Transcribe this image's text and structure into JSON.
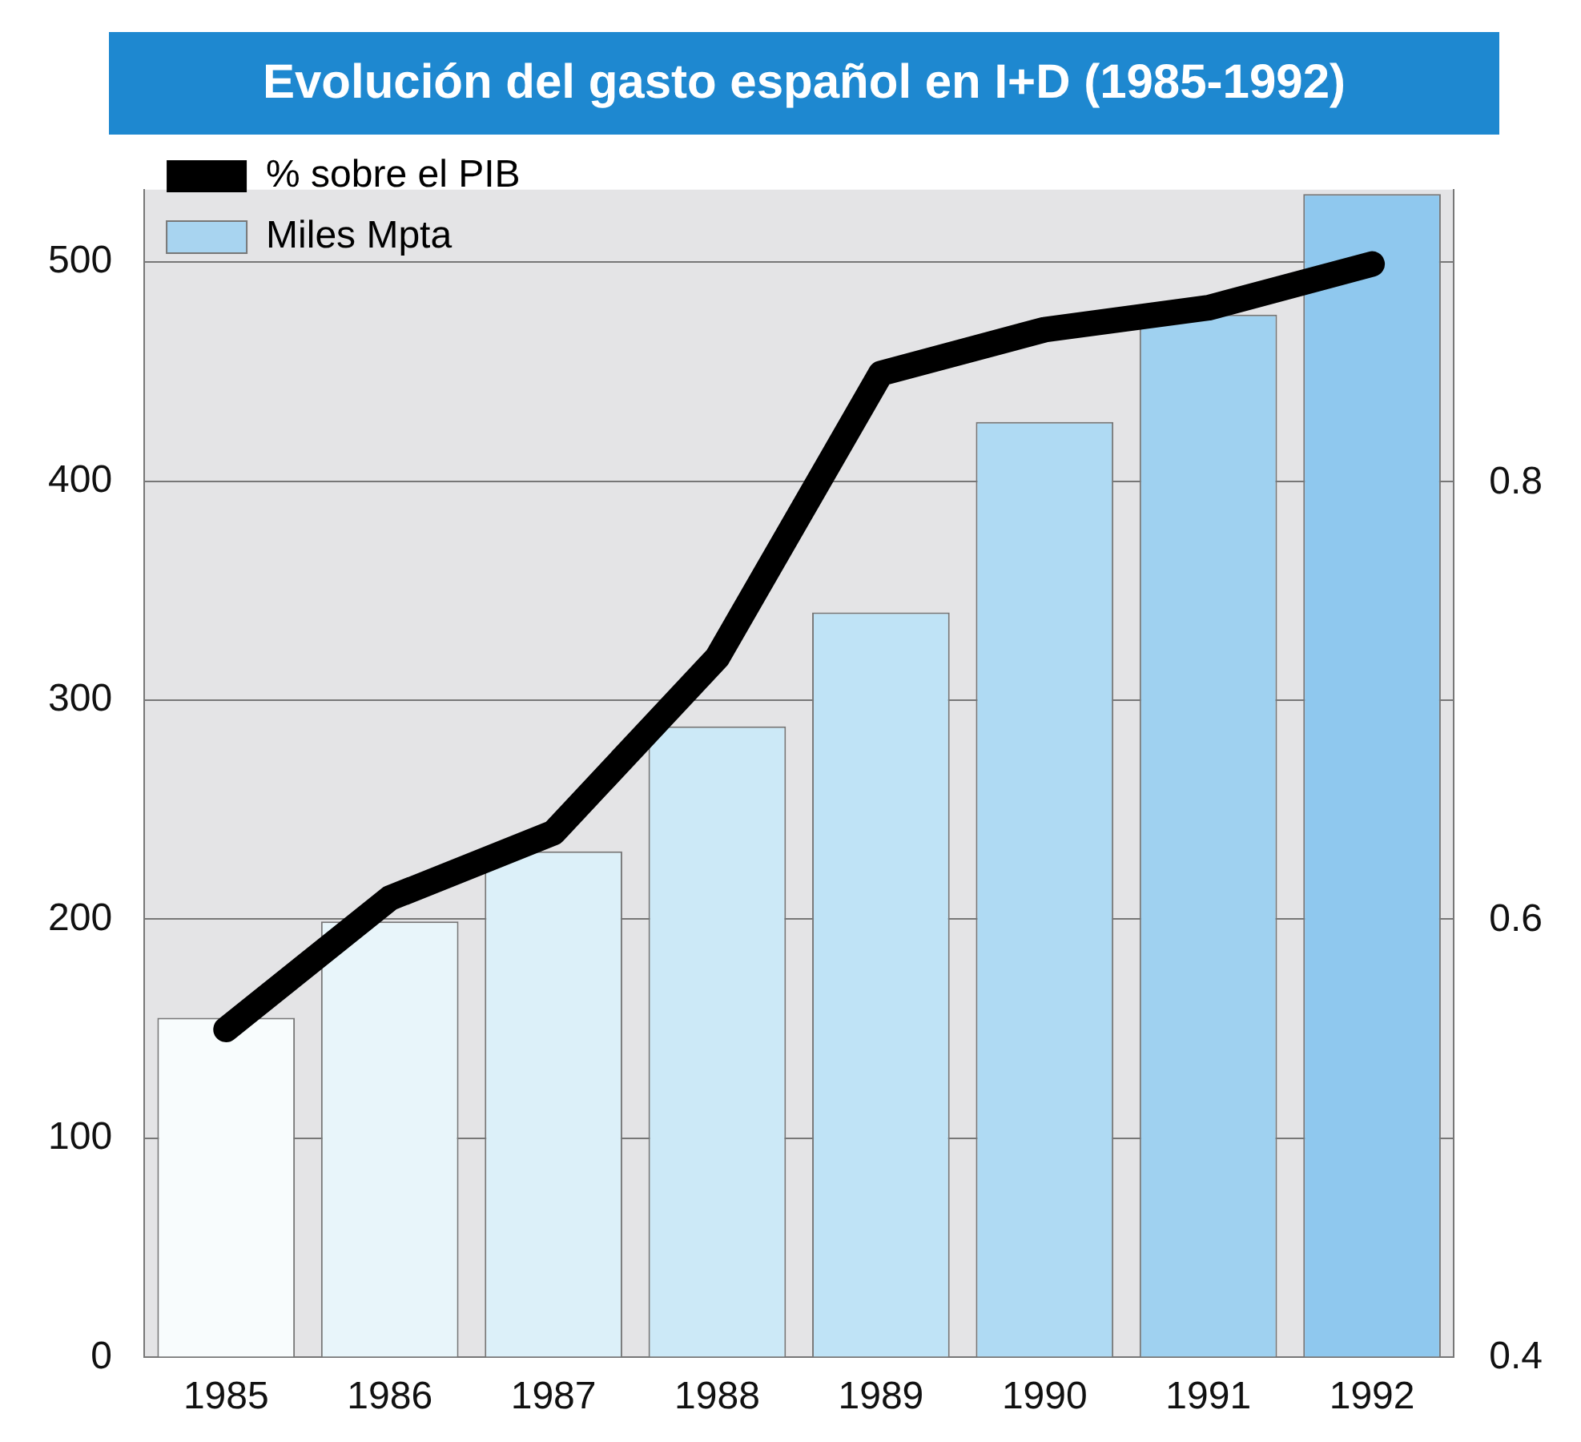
{
  "chart_data": {
    "type": "bar",
    "title": "Evolución del gasto español en I+D (1985-1992)",
    "categories": [
      "1985",
      "1986",
      "1987",
      "1988",
      "1989",
      "1990",
      "1991",
      "1992"
    ],
    "series": [
      {
        "name": "% sobre el PIB",
        "type": "line",
        "axis": "y2",
        "color": "#000000",
        "values": [
          0.55,
          0.61,
          0.64,
          0.72,
          0.85,
          0.87,
          0.88,
          0.9
        ]
      },
      {
        "name": "Miles Mpta",
        "color": "#a8d4f0",
        "colors": [
          "#f8fcfd",
          "#e8f5fa",
          "#dcf0f9",
          "#cce9f7",
          "#bfe3f6",
          "#afdaf3",
          "#9fd1f0",
          "#8fc8ee"
        ],
        "values": [
          155,
          199,
          231,
          288,
          340,
          427,
          476,
          531
        ]
      }
    ],
    "ylim": [
      0,
      533
    ],
    "yticks": [
      0,
      100,
      200,
      300,
      400,
      500
    ],
    "y2lim": [
      0.4,
      0.934
    ],
    "y2ticks": [
      0.4,
      0.6,
      0.8
    ],
    "grid": "y",
    "legend": "top left"
  }
}
